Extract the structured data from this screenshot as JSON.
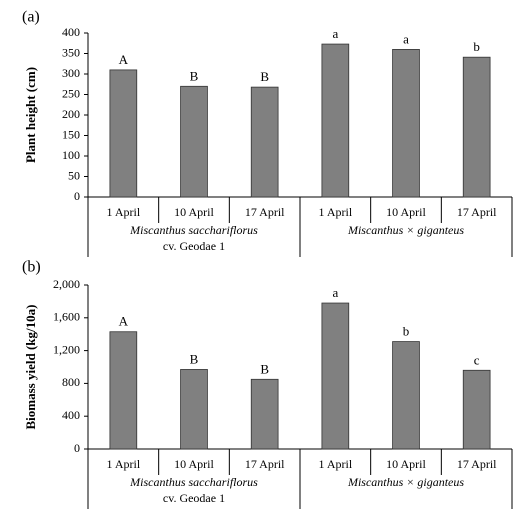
{
  "chart_data": [
    {
      "type": "bar",
      "panel": "(a)",
      "y_label": "Plant height (cm)",
      "categories": [
        "1 April",
        "10 April",
        "17 April",
        "1 April",
        "10 April",
        "17 April"
      ],
      "groups": [
        {
          "label": "Miscanthus sacchariflorus",
          "sublabel": "cv. Geodae 1"
        },
        {
          "label": "Miscanthus × giganteus"
        }
      ],
      "values": [
        310,
        270,
        268,
        373,
        360,
        341
      ],
      "annotations": [
        "A",
        "B",
        "B",
        "a",
        "a",
        "b"
      ],
      "color": "#808080",
      "ylim": [
        0,
        400
      ],
      "yticks": [
        0,
        50,
        100,
        150,
        200,
        250,
        300,
        350,
        400
      ]
    },
    {
      "type": "bar",
      "panel": "(b)",
      "y_label": "Biomass yield  (kg/10a)",
      "categories": [
        "1 April",
        "10 April",
        "17 April",
        "1 April",
        "10 April",
        "17 April"
      ],
      "groups": [
        {
          "label": "Miscanthus sacchariflorus",
          "sublabel": "cv. Geodae 1"
        },
        {
          "label": "Miscanthus × giganteus"
        }
      ],
      "values": [
        1430,
        970,
        850,
        1780,
        1310,
        960
      ],
      "annotations": [
        "A",
        "B",
        "B",
        "a",
        "b",
        "c"
      ],
      "color": "#808080",
      "ylim": [
        0,
        2000
      ],
      "yticks": [
        0,
        400,
        800,
        {
          "value": 1200,
          "label": "1,200"
        },
        {
          "value": 1600,
          "label": "1,600"
        },
        {
          "value": 2000,
          "label": "2,000"
        }
      ]
    }
  ]
}
